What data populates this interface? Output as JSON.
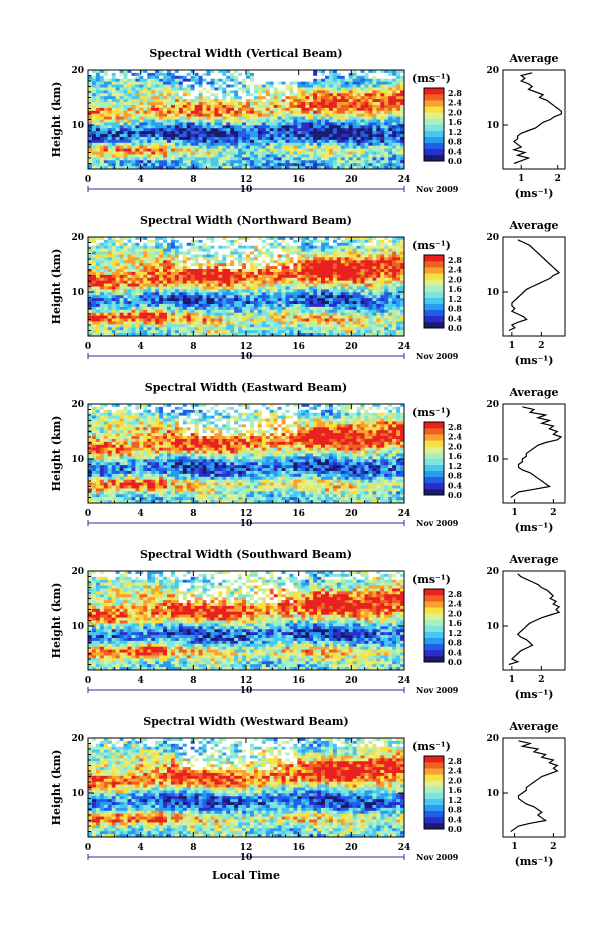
{
  "figure": {
    "xlabel": "Local Time",
    "date_label": "Nov 2009",
    "day_label": "10",
    "ylabel": "Height (km)",
    "avg_title": "Average",
    "unit_label": "(ms⁻¹)",
    "colormap": [
      "#1a1a6e",
      "#2c2cc8",
      "#1f5fe8",
      "#2a9cf0",
      "#48c8f0",
      "#7fe4e0",
      "#a8f0c0",
      "#e0f090",
      "#f8e040",
      "#f8a030",
      "#f06020",
      "#e82020"
    ]
  },
  "chart_data": [
    {
      "type": "heatmap",
      "title": "Spectral Width (Vertical Beam)",
      "x_ticks": [
        0,
        4,
        8,
        12,
        16,
        20,
        24
      ],
      "y_ticks": [
        10,
        20
      ],
      "xlim": [
        0,
        24
      ],
      "ylim": [
        2,
        20
      ],
      "colorbar_ticks": [
        "2.8",
        "2.4",
        "2.0",
        "1.6",
        "1.2",
        "0.8",
        "0.4",
        "0.0"
      ],
      "colorbar_range": [
        0.0,
        3.0
      ],
      "average_profile": {
        "x_ticks": [
          "1",
          "2"
        ],
        "xlim": [
          0.5,
          2.2
        ],
        "points": [
          [
            1.3,
            19.5
          ],
          [
            1.0,
            19
          ],
          [
            1.1,
            18.5
          ],
          [
            1.0,
            18
          ],
          [
            1.2,
            17.5
          ],
          [
            1.3,
            17
          ],
          [
            1.2,
            16.5
          ],
          [
            1.4,
            16
          ],
          [
            1.6,
            15.5
          ],
          [
            1.5,
            15
          ],
          [
            1.7,
            14.5
          ],
          [
            1.8,
            14
          ],
          [
            1.9,
            13.5
          ],
          [
            2.0,
            13
          ],
          [
            2.1,
            12.5
          ],
          [
            2.1,
            12
          ],
          [
            1.9,
            11.5
          ],
          [
            1.8,
            11
          ],
          [
            1.6,
            10.5
          ],
          [
            1.5,
            10
          ],
          [
            1.4,
            9.5
          ],
          [
            1.2,
            9
          ],
          [
            1.0,
            8.5
          ],
          [
            0.9,
            8
          ],
          [
            0.9,
            7.5
          ],
          [
            0.8,
            7
          ],
          [
            0.9,
            6.5
          ],
          [
            1.0,
            6
          ],
          [
            0.8,
            5.5
          ],
          [
            1.1,
            5
          ],
          [
            0.9,
            4.5
          ],
          [
            1.2,
            4
          ],
          [
            1.0,
            3.5
          ],
          [
            0.8,
            3
          ]
        ]
      }
    },
    {
      "type": "heatmap",
      "title": "Spectral Width (Northward Beam)",
      "x_ticks": [
        0,
        4,
        8,
        12,
        16,
        20,
        24
      ],
      "y_ticks": [
        10,
        20
      ],
      "xlim": [
        0,
        24
      ],
      "ylim": [
        2,
        20
      ],
      "colorbar_ticks": [
        "2.8",
        "2.4",
        "2.0",
        "1.6",
        "1.2",
        "0.8",
        "0.4",
        "0.0"
      ],
      "colorbar_range": [
        0.0,
        3.0
      ],
      "average_profile": {
        "x_ticks": [
          "1",
          "2"
        ],
        "xlim": [
          0.7,
          2.8
        ],
        "points": [
          [
            1.2,
            19.5
          ],
          [
            1.4,
            19
          ],
          [
            1.6,
            18.5
          ],
          [
            1.7,
            18
          ],
          [
            1.8,
            17.5
          ],
          [
            1.9,
            17
          ],
          [
            2.0,
            16.5
          ],
          [
            2.1,
            16
          ],
          [
            2.2,
            15.5
          ],
          [
            2.3,
            15
          ],
          [
            2.4,
            14.5
          ],
          [
            2.5,
            14
          ],
          [
            2.6,
            13.5
          ],
          [
            2.4,
            13
          ],
          [
            2.3,
            12.5
          ],
          [
            2.1,
            12
          ],
          [
            1.9,
            11.5
          ],
          [
            1.7,
            11
          ],
          [
            1.5,
            10.5
          ],
          [
            1.4,
            10
          ],
          [
            1.3,
            9.5
          ],
          [
            1.2,
            9
          ],
          [
            1.1,
            8.5
          ],
          [
            1.0,
            8
          ],
          [
            1.0,
            7.5
          ],
          [
            1.1,
            7
          ],
          [
            1.0,
            6.5
          ],
          [
            1.2,
            6
          ],
          [
            1.4,
            5.5
          ],
          [
            1.5,
            5
          ],
          [
            1.2,
            4.5
          ],
          [
            1.0,
            4
          ],
          [
            1.1,
            3.5
          ],
          [
            0.9,
            3
          ]
        ]
      }
    },
    {
      "type": "heatmap",
      "title": "Spectral Width (Eastward Beam)",
      "x_ticks": [
        0,
        4,
        8,
        12,
        16,
        20,
        24
      ],
      "y_ticks": [
        10,
        20
      ],
      "xlim": [
        0,
        24
      ],
      "ylim": [
        2,
        20
      ],
      "colorbar_ticks": [
        "2.8",
        "2.4",
        "2.0",
        "1.6",
        "1.2",
        "0.8",
        "0.4",
        "0.0"
      ],
      "colorbar_range": [
        0.0,
        3.0
      ],
      "average_profile": {
        "x_ticks": [
          "1",
          "2"
        ],
        "xlim": [
          0.7,
          2.3
        ],
        "points": [
          [
            1.2,
            19.5
          ],
          [
            1.5,
            19
          ],
          [
            1.4,
            18.5
          ],
          [
            1.8,
            18
          ],
          [
            1.6,
            17.5
          ],
          [
            1.9,
            17
          ],
          [
            1.7,
            16.5
          ],
          [
            2.0,
            16
          ],
          [
            1.9,
            15.5
          ],
          [
            2.1,
            15
          ],
          [
            2.0,
            14.5
          ],
          [
            2.2,
            14
          ],
          [
            2.1,
            13.5
          ],
          [
            1.8,
            13
          ],
          [
            1.6,
            12.5
          ],
          [
            1.5,
            12
          ],
          [
            1.4,
            11.5
          ],
          [
            1.3,
            11
          ],
          [
            1.3,
            10.5
          ],
          [
            1.2,
            10
          ],
          [
            1.2,
            9.5
          ],
          [
            1.1,
            9
          ],
          [
            1.1,
            8.5
          ],
          [
            1.2,
            8
          ],
          [
            1.4,
            7.5
          ],
          [
            1.5,
            7
          ],
          [
            1.6,
            6.5
          ],
          [
            1.7,
            6
          ],
          [
            1.8,
            5.5
          ],
          [
            1.9,
            5
          ],
          [
            1.5,
            4.5
          ],
          [
            1.1,
            4
          ],
          [
            1.0,
            3.5
          ],
          [
            0.9,
            3
          ]
        ]
      }
    },
    {
      "type": "heatmap",
      "title": "Spectral Width (Southward Beam)",
      "x_ticks": [
        0,
        4,
        8,
        12,
        16,
        20,
        24
      ],
      "y_ticks": [
        10,
        20
      ],
      "xlim": [
        0,
        24
      ],
      "ylim": [
        2,
        20
      ],
      "colorbar_ticks": [
        "2.8",
        "2.4",
        "2.0",
        "1.6",
        "1.2",
        "0.8",
        "0.4",
        "0.0"
      ],
      "colorbar_range": [
        0.0,
        3.0
      ],
      "average_profile": {
        "x_ticks": [
          "1",
          "2"
        ],
        "xlim": [
          0.7,
          2.8
        ],
        "points": [
          [
            1.2,
            19.5
          ],
          [
            1.3,
            19
          ],
          [
            1.5,
            18.5
          ],
          [
            1.7,
            18
          ],
          [
            1.9,
            17.5
          ],
          [
            2.0,
            17
          ],
          [
            2.2,
            16.5
          ],
          [
            2.3,
            16
          ],
          [
            2.4,
            15.5
          ],
          [
            2.3,
            15
          ],
          [
            2.5,
            14.5
          ],
          [
            2.4,
            14
          ],
          [
            2.6,
            13.5
          ],
          [
            2.5,
            13
          ],
          [
            2.6,
            12.5
          ],
          [
            2.3,
            12
          ],
          [
            2.0,
            11.5
          ],
          [
            1.8,
            11
          ],
          [
            1.6,
            10.5
          ],
          [
            1.5,
            10
          ],
          [
            1.4,
            9.5
          ],
          [
            1.3,
            9
          ],
          [
            1.2,
            8.5
          ],
          [
            1.3,
            8
          ],
          [
            1.5,
            7.5
          ],
          [
            1.6,
            7
          ],
          [
            1.7,
            6.5
          ],
          [
            1.5,
            6
          ],
          [
            1.3,
            5.5
          ],
          [
            1.2,
            5
          ],
          [
            1.1,
            4.5
          ],
          [
            1.0,
            4
          ],
          [
            1.2,
            3.5
          ],
          [
            0.9,
            3
          ]
        ]
      }
    },
    {
      "type": "heatmap",
      "title": "Spectral Width (Westward Beam)",
      "x_ticks": [
        0,
        4,
        8,
        12,
        16,
        20,
        24
      ],
      "y_ticks": [
        10,
        20
      ],
      "xlim": [
        0,
        24
      ],
      "ylim": [
        2,
        20
      ],
      "colorbar_ticks": [
        "2.8",
        "2.4",
        "2.0",
        "1.6",
        "1.2",
        "0.8",
        "0.4",
        "0.0"
      ],
      "colorbar_range": [
        0.0,
        3.0
      ],
      "average_profile": {
        "x_ticks": [
          "1",
          "2"
        ],
        "xlim": [
          0.7,
          2.3
        ],
        "points": [
          [
            1.1,
            19.5
          ],
          [
            1.4,
            19
          ],
          [
            1.2,
            18.5
          ],
          [
            1.6,
            18
          ],
          [
            1.5,
            17.5
          ],
          [
            1.8,
            17
          ],
          [
            1.7,
            16.5
          ],
          [
            2.0,
            16
          ],
          [
            1.9,
            15.5
          ],
          [
            2.1,
            15
          ],
          [
            2.0,
            14.5
          ],
          [
            2.1,
            14
          ],
          [
            1.9,
            13.5
          ],
          [
            1.7,
            13
          ],
          [
            1.6,
            12.5
          ],
          [
            1.5,
            12
          ],
          [
            1.4,
            11.5
          ],
          [
            1.3,
            11
          ],
          [
            1.3,
            10.5
          ],
          [
            1.2,
            10
          ],
          [
            1.1,
            9.5
          ],
          [
            1.1,
            9
          ],
          [
            1.2,
            8.5
          ],
          [
            1.3,
            8
          ],
          [
            1.5,
            7.5
          ],
          [
            1.6,
            7
          ],
          [
            1.7,
            6.5
          ],
          [
            1.6,
            6
          ],
          [
            1.7,
            5.5
          ],
          [
            1.8,
            5
          ],
          [
            1.4,
            4.5
          ],
          [
            1.1,
            4
          ],
          [
            1.0,
            3.5
          ],
          [
            0.9,
            3
          ]
        ]
      }
    }
  ]
}
